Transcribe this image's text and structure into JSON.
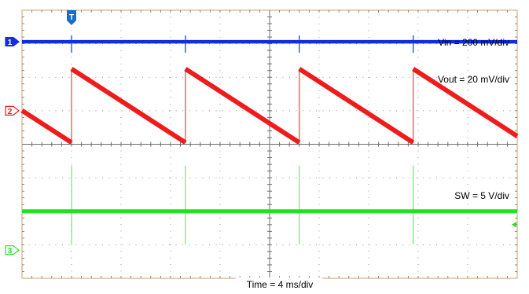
{
  "chart_data": {
    "type": "line",
    "grid": true,
    "x_range_ms": [
      0,
      40
    ],
    "divisions": {
      "x": 10,
      "y": 8
    },
    "xlabel": "Time = 4 ms/div",
    "trigger_marker": "T",
    "colors": {
      "ch1": "#1030e0",
      "ch2": "#ee1c1c",
      "ch3": "#22e022",
      "grid": "#6e6e6e",
      "frame": "#c8a070"
    },
    "series": [
      {
        "channel": "1",
        "name": "Vin = 200 mV/div",
        "color": "#1030e0",
        "shape": "dc",
        "level_div": 3.06
      },
      {
        "channel": "2",
        "name": "Vout = 20 mV/div",
        "color": "#ee1c1c",
        "shape": "sawtooth",
        "period_ms": 9.2,
        "first_reset_ms": 4.0,
        "high_div": 2.25,
        "low_div": 0.05
      },
      {
        "channel": "3",
        "name": "SW = 5 V/div",
        "color": "#22e022",
        "shape": "dc_with_spikes",
        "level_div": -2.0,
        "spike_times_ms": [
          4.0,
          13.2,
          22.4,
          31.6
        ]
      }
    ],
    "channel_markers": [
      {
        "label": "1",
        "color": "#1030e0",
        "level_div": 3.06
      },
      {
        "label": "2",
        "color": "#ee1c1c",
        "level_div": 1.0
      },
      {
        "label": "3",
        "color": "#22e022",
        "level_div": -3.16
      }
    ]
  }
}
